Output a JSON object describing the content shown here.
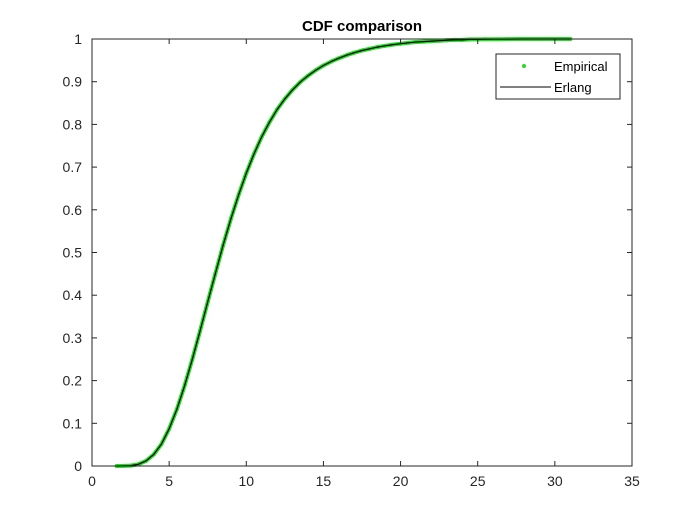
{
  "chart_data": {
    "type": "line",
    "title": "CDF comparison",
    "xlabel": "",
    "ylabel": "",
    "xlim": [
      0,
      35
    ],
    "ylim": [
      0,
      1
    ],
    "xticks": [
      "0",
      "5",
      "10",
      "15",
      "20",
      "25",
      "30",
      "35"
    ],
    "yticks": [
      "0",
      "0.1",
      "0.2",
      "0.3",
      "0.4",
      "0.5",
      "0.6",
      "0.7",
      "0.8",
      "0.9",
      "1"
    ],
    "grid": false,
    "legend_position": "top-right",
    "series": [
      {
        "name": "Empirical",
        "style": "points",
        "color": "#22dd22",
        "x": [
          1.6,
          2,
          2.5,
          3,
          3.5,
          4,
          4.5,
          5,
          5.5,
          6,
          6.5,
          7,
          7.5,
          8,
          8.5,
          9,
          9.5,
          10,
          10.5,
          11,
          11.5,
          12,
          12.5,
          13,
          13.5,
          14,
          14.5,
          15,
          15.5,
          16,
          16.5,
          17,
          17.5,
          18,
          18.5,
          19,
          19.5,
          20,
          20.5,
          21,
          21.5,
          22,
          22.5,
          23,
          23.5,
          24,
          24.5,
          25,
          25.5,
          26.3,
          26.9,
          27.6,
          28,
          31
        ],
        "y": [
          0.0001,
          0.0002,
          0.001,
          0.004,
          0.012,
          0.027,
          0.051,
          0.087,
          0.133,
          0.188,
          0.25,
          0.316,
          0.384,
          0.451,
          0.517,
          0.579,
          0.635,
          0.686,
          0.731,
          0.771,
          0.805,
          0.835,
          0.86,
          0.881,
          0.899,
          0.914,
          0.927,
          0.938,
          0.947,
          0.955,
          0.962,
          0.968,
          0.973,
          0.977,
          0.981,
          0.984,
          0.987,
          0.989,
          0.991,
          0.993,
          0.994,
          0.995,
          0.996,
          0.997,
          0.998,
          0.998,
          0.999,
          0.999,
          0.9993,
          0.9996,
          0.9998,
          0.9999,
          0.9999,
          1.0
        ]
      },
      {
        "name": "Erlang",
        "style": "line",
        "color": "#000000",
        "x": [
          1.6,
          2,
          2.5,
          3,
          3.5,
          4,
          4.5,
          5,
          5.5,
          6,
          6.5,
          7,
          7.5,
          8,
          8.5,
          9,
          9.5,
          10,
          10.5,
          11,
          11.5,
          12,
          12.5,
          13,
          13.5,
          14,
          14.5,
          15,
          15.5,
          16,
          16.5,
          17,
          17.5,
          18,
          18.5,
          19,
          19.5,
          20,
          20.5,
          21,
          21.5,
          22,
          22.5,
          23,
          23.5,
          24,
          24.5,
          25,
          26,
          27,
          28,
          29,
          30,
          31
        ],
        "y": [
          0.0001,
          0.0002,
          0.001,
          0.004,
          0.012,
          0.027,
          0.051,
          0.087,
          0.133,
          0.188,
          0.25,
          0.316,
          0.384,
          0.451,
          0.517,
          0.579,
          0.635,
          0.686,
          0.731,
          0.771,
          0.805,
          0.835,
          0.86,
          0.881,
          0.899,
          0.914,
          0.927,
          0.938,
          0.947,
          0.955,
          0.962,
          0.968,
          0.973,
          0.977,
          0.981,
          0.984,
          0.987,
          0.989,
          0.991,
          0.993,
          0.994,
          0.995,
          0.996,
          0.997,
          0.998,
          0.998,
          0.999,
          0.999,
          0.9995,
          0.9998,
          0.9999,
          0.99995,
          0.99998,
          1.0
        ]
      }
    ]
  }
}
